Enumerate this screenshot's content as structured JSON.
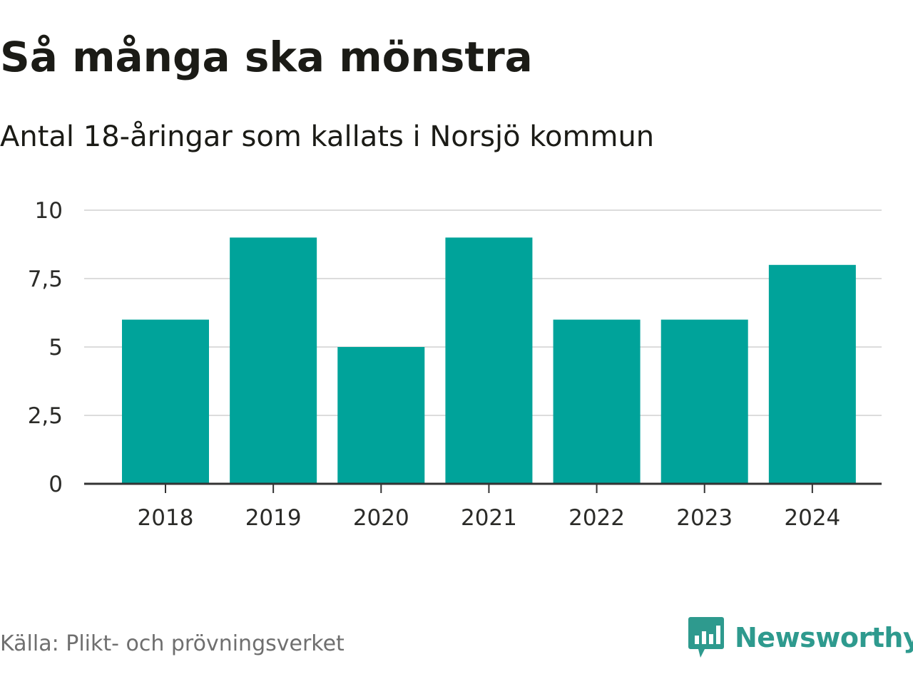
{
  "title": "Så många ska mönstra",
  "subtitle": "Antal 18-åringar som kallats i Norsjö kommun",
  "source": "Källa: Plikt- och prövningsverket",
  "brand": {
    "name": "Newsworthy",
    "icon": "newsworthy-logo-icon",
    "color": "#2e9a8e"
  },
  "colors": {
    "bar": "#00a39a",
    "grid": "#dcdcdc",
    "axis": "#333333"
  },
  "chart_data": {
    "type": "bar",
    "title": "Så många ska mönstra",
    "subtitle": "Antal 18-åringar som kallats i Norsjö kommun",
    "categories": [
      "2018",
      "2019",
      "2020",
      "2021",
      "2022",
      "2023",
      "2024"
    ],
    "values": [
      6,
      9,
      5,
      9,
      6,
      6,
      8
    ],
    "xlabel": "",
    "ylabel": "",
    "ylim": [
      0,
      10
    ],
    "yticks": [
      0,
      2.5,
      5,
      7.5,
      10
    ],
    "ytick_labels": [
      "0",
      "2,5",
      "5",
      "7,5",
      "10"
    ],
    "grid": true,
    "legend": "none"
  }
}
